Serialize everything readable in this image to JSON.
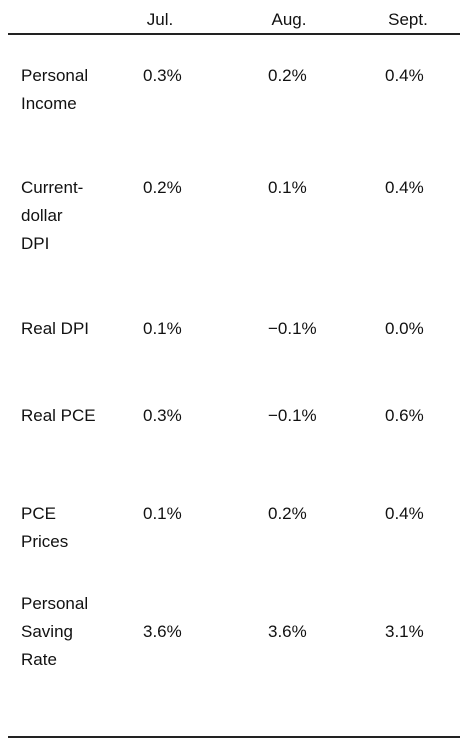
{
  "table": {
    "columns": [
      "Jul.",
      "Aug.",
      "Sept."
    ],
    "rows": [
      {
        "label_lines": [
          "Personal",
          "Income"
        ],
        "values": [
          "0.3%",
          "0.2%",
          "0.4%"
        ]
      },
      {
        "label_lines": [
          "Current-",
          "dollar",
          "DPI"
        ],
        "values": [
          "0.2%",
          "0.1%",
          "0.4%"
        ]
      },
      {
        "label_lines": [
          "Real DPI"
        ],
        "values": [
          "0.1%",
          "−0.1%",
          "0.0%"
        ]
      },
      {
        "label_lines": [
          "Real PCE"
        ],
        "values": [
          "0.3%",
          "−0.1%",
          "0.6%"
        ]
      },
      {
        "label_lines": [
          "PCE",
          "Prices"
        ],
        "values": [
          "0.1%",
          "0.2%",
          "0.4%"
        ]
      },
      {
        "label_lines": [
          "Personal",
          "Saving",
          "Rate"
        ],
        "values": [
          "3.6%",
          "3.6%",
          "3.1%"
        ]
      }
    ]
  }
}
